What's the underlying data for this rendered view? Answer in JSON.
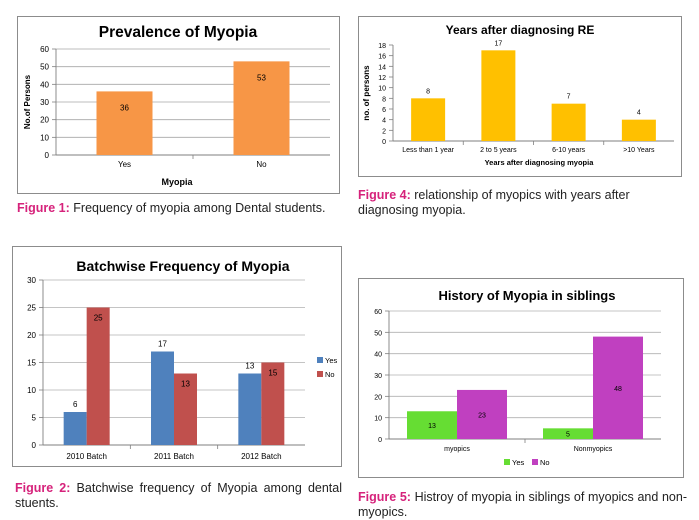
{
  "charts": [
    {
      "id": "c1",
      "type": "bar",
      "title": "Prevalence of Myopia",
      "xlabel": "Myopia",
      "ylabel": "No.of Persons",
      "categories": [
        "Yes",
        "No"
      ],
      "values": [
        36,
        53
      ],
      "ylim": [
        0,
        60
      ],
      "ytick_step": 10,
      "color": "#f79646",
      "grid": true,
      "caption": {
        "label": "Figure 1:",
        "text": " Frequency of myopia among Dental students."
      }
    },
    {
      "id": "c4",
      "type": "bar",
      "title": "Years after diagnosing RE",
      "xlabel": "Years after diagnosing myopia",
      "ylabel": "no. of persons",
      "categories": [
        "Less than 1 year",
        "2 to 5 years",
        "6-10 years",
        ">10 Years"
      ],
      "values": [
        8,
        17,
        7,
        4
      ],
      "ylim": [
        0,
        18
      ],
      "ytick_step": 2,
      "color": "#ffc000",
      "grid": false,
      "caption": {
        "label": "Figure 4:",
        "text": " relationship of myopics with years after diagnosing myopia."
      }
    },
    {
      "id": "c2",
      "type": "bar",
      "title": "Batchwise Frequency of Myopia",
      "categories": [
        "2010 Batch",
        "2011 Batch",
        "2012 Batch"
      ],
      "series": [
        {
          "name": "Yes",
          "values": [
            6,
            17,
            13
          ],
          "color": "#4f81bd"
        },
        {
          "name": "No",
          "values": [
            25,
            13,
            15
          ],
          "color": "#c0504d"
        }
      ],
      "ylim": [
        0,
        30
      ],
      "ytick_step": 5,
      "grid": true,
      "legend": "right",
      "caption": {
        "label": "Figure 2:",
        "text": " Batchwise frequency of Myopia among dental stuents."
      }
    },
    {
      "id": "c5",
      "type": "bar",
      "title": "History of Myopia in siblings",
      "categories": [
        "myopics",
        "Nonmyopics"
      ],
      "series": [
        {
          "name": "Yes",
          "values": [
            13,
            5
          ],
          "color": "#66dd33"
        },
        {
          "name": "No",
          "values": [
            23,
            48
          ],
          "color": "#c040c0"
        }
      ],
      "ylim": [
        0,
        60
      ],
      "ytick_step": 10,
      "grid": true,
      "legend": "bottom",
      "caption": {
        "label": "Figure 5:",
        "text": " Histroy of myopia in siblings of myopics and non-myopics."
      }
    }
  ]
}
